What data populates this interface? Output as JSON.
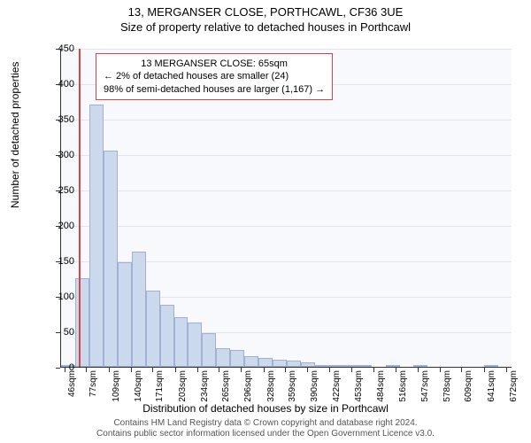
{
  "header": {
    "address": "13, MERGANSER CLOSE, PORTHCAWL, CF36 3UE",
    "subtitle": "Size of property relative to detached houses in Porthcawl"
  },
  "chart": {
    "type": "histogram",
    "background_color": "#f7f9fc",
    "grid_color": "#e1e6ee",
    "bar_fill": "#ccd9ed",
    "bar_stroke": "#9db2d4",
    "marker_color": "#d94545",
    "x_min": 40,
    "x_max": 680,
    "y_min": 0,
    "y_max": 450,
    "y_ticks": [
      0,
      50,
      100,
      150,
      200,
      250,
      300,
      350,
      400,
      450
    ],
    "x_tick_values": [
      46,
      77,
      109,
      140,
      171,
      203,
      234,
      265,
      296,
      328,
      359,
      390,
      422,
      453,
      484,
      516,
      547,
      578,
      609,
      641,
      672
    ],
    "x_tick_suffix": "sqm",
    "marker_x": 65,
    "bars": [
      {
        "x0": 40,
        "x1": 60,
        "y": 2
      },
      {
        "x0": 60,
        "x1": 80,
        "y": 125
      },
      {
        "x0": 80,
        "x1": 100,
        "y": 370
      },
      {
        "x0": 100,
        "x1": 120,
        "y": 305
      },
      {
        "x0": 120,
        "x1": 140,
        "y": 148
      },
      {
        "x0": 140,
        "x1": 160,
        "y": 163
      },
      {
        "x0": 160,
        "x1": 180,
        "y": 108
      },
      {
        "x0": 180,
        "x1": 200,
        "y": 88
      },
      {
        "x0": 200,
        "x1": 220,
        "y": 70
      },
      {
        "x0": 220,
        "x1": 240,
        "y": 62
      },
      {
        "x0": 240,
        "x1": 260,
        "y": 48
      },
      {
        "x0": 260,
        "x1": 280,
        "y": 26
      },
      {
        "x0": 280,
        "x1": 300,
        "y": 24
      },
      {
        "x0": 300,
        "x1": 320,
        "y": 15
      },
      {
        "x0": 320,
        "x1": 340,
        "y": 12
      },
      {
        "x0": 340,
        "x1": 360,
        "y": 10
      },
      {
        "x0": 360,
        "x1": 380,
        "y": 9
      },
      {
        "x0": 380,
        "x1": 400,
        "y": 6
      },
      {
        "x0": 400,
        "x1": 420,
        "y": 3
      },
      {
        "x0": 420,
        "x1": 440,
        "y": 2
      },
      {
        "x0": 440,
        "x1": 460,
        "y": 3
      },
      {
        "x0": 460,
        "x1": 480,
        "y": 1
      },
      {
        "x0": 500,
        "x1": 520,
        "y": 1
      },
      {
        "x0": 540,
        "x1": 560,
        "y": 1
      },
      {
        "x0": 640,
        "x1": 660,
        "y": 1
      }
    ],
    "y_axis_title": "Number of detached properties",
    "x_axis_title": "Distribution of detached houses by size in Porthcawl"
  },
  "annotation": {
    "line1": "13 MERGANSER CLOSE: 65sqm",
    "line2": "← 2% of detached houses are smaller (24)",
    "line3": "98% of semi-detached houses are larger (1,167) →",
    "border_color": "#d94545",
    "fontsize": 11
  },
  "footer": {
    "line1": "Contains HM Land Registry data © Crown copyright and database right 2024.",
    "line2": "Contains public sector information licensed under the Open Government Licence v3.0."
  }
}
